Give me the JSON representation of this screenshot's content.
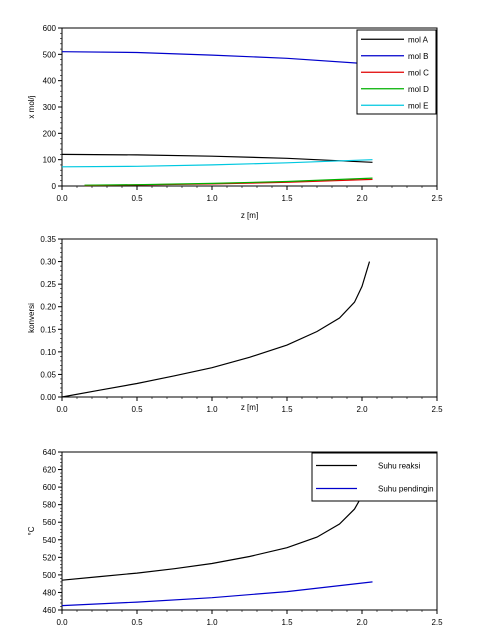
{
  "chart_data": [
    {
      "type": "line",
      "xlabel": "z [m]",
      "ylabel": "x mol/j",
      "xlim": [
        0,
        2.5
      ],
      "ylim": [
        0,
        600
      ],
      "xticks": [
        "0.0",
        "0.5",
        "1.0",
        "1.5",
        "2.0",
        "2.5"
      ],
      "yticks": [
        "0",
        "100",
        "200",
        "300",
        "400",
        "500",
        "600"
      ],
      "legend": "top-right",
      "series": [
        {
          "name": "mol A",
          "color": "#000000",
          "x": [
            0,
            0.5,
            1.0,
            1.5,
            2.07
          ],
          "y": [
            120,
            118,
            113,
            105,
            90
          ]
        },
        {
          "name": "mol B",
          "color": "#0000cc",
          "x": [
            0,
            0.5,
            1.0,
            1.5,
            2.07
          ],
          "y": [
            510,
            507,
            497,
            485,
            463
          ]
        },
        {
          "name": "mol C",
          "color": "#e00000",
          "x": [
            0.15,
            0.5,
            1.0,
            1.5,
            2.07
          ],
          "y": [
            2,
            4,
            8,
            14,
            25
          ]
        },
        {
          "name": "mol D",
          "color": "#00b000",
          "x": [
            0.15,
            0.5,
            1.0,
            1.5,
            2.07
          ],
          "y": [
            3,
            5,
            10,
            17,
            30
          ]
        },
        {
          "name": "mol E",
          "color": "#00c8e0",
          "x": [
            0,
            0.5,
            1.0,
            1.5,
            2.07
          ],
          "y": [
            73,
            75,
            80,
            88,
            100
          ]
        }
      ]
    },
    {
      "type": "line",
      "xlabel": "z [m]",
      "ylabel": "konversi",
      "xlim": [
        0,
        2.5
      ],
      "ylim": [
        0,
        0.35
      ],
      "xticks": [
        "0.0",
        "0.5",
        "1.0",
        "1.5",
        "2.0",
        "2.5"
      ],
      "yticks": [
        "0.00",
        "0.05",
        "0.10",
        "0.15",
        "0.20",
        "0.25",
        "0.30",
        "0.35"
      ],
      "series": [
        {
          "color": "#000000",
          "x": [
            0,
            0.25,
            0.5,
            0.75,
            1.0,
            1.25,
            1.5,
            1.7,
            1.85,
            1.95,
            2.0,
            2.05
          ],
          "y": [
            0.0,
            0.015,
            0.03,
            0.047,
            0.065,
            0.088,
            0.115,
            0.145,
            0.175,
            0.21,
            0.245,
            0.3
          ]
        }
      ]
    },
    {
      "type": "line",
      "xlabel": "",
      "ylabel": "°C",
      "xlim": [
        0,
        2.5
      ],
      "ylim": [
        460,
        640
      ],
      "xticks": [
        "0.0",
        "0.5",
        "1.0",
        "1.5",
        "2.0",
        "2.5"
      ],
      "yticks": [
        "460",
        "480",
        "500",
        "520",
        "540",
        "560",
        "580",
        "600",
        "620",
        "640"
      ],
      "legend": "top-right",
      "series": [
        {
          "name": "Suhu reaksi",
          "color": "#000000",
          "x": [
            0,
            0.25,
            0.5,
            0.75,
            1.0,
            1.25,
            1.5,
            1.7,
            1.85,
            1.95,
            2.0,
            2.05
          ],
          "y": [
            494,
            498,
            502,
            507,
            513,
            521,
            531,
            543,
            558,
            575,
            590,
            612
          ]
        },
        {
          "name": "Suhu pendingin",
          "color": "#0000cc",
          "x": [
            0,
            0.5,
            1.0,
            1.5,
            2.07
          ],
          "y": [
            465,
            469,
            474,
            481,
            492
          ]
        }
      ]
    }
  ]
}
